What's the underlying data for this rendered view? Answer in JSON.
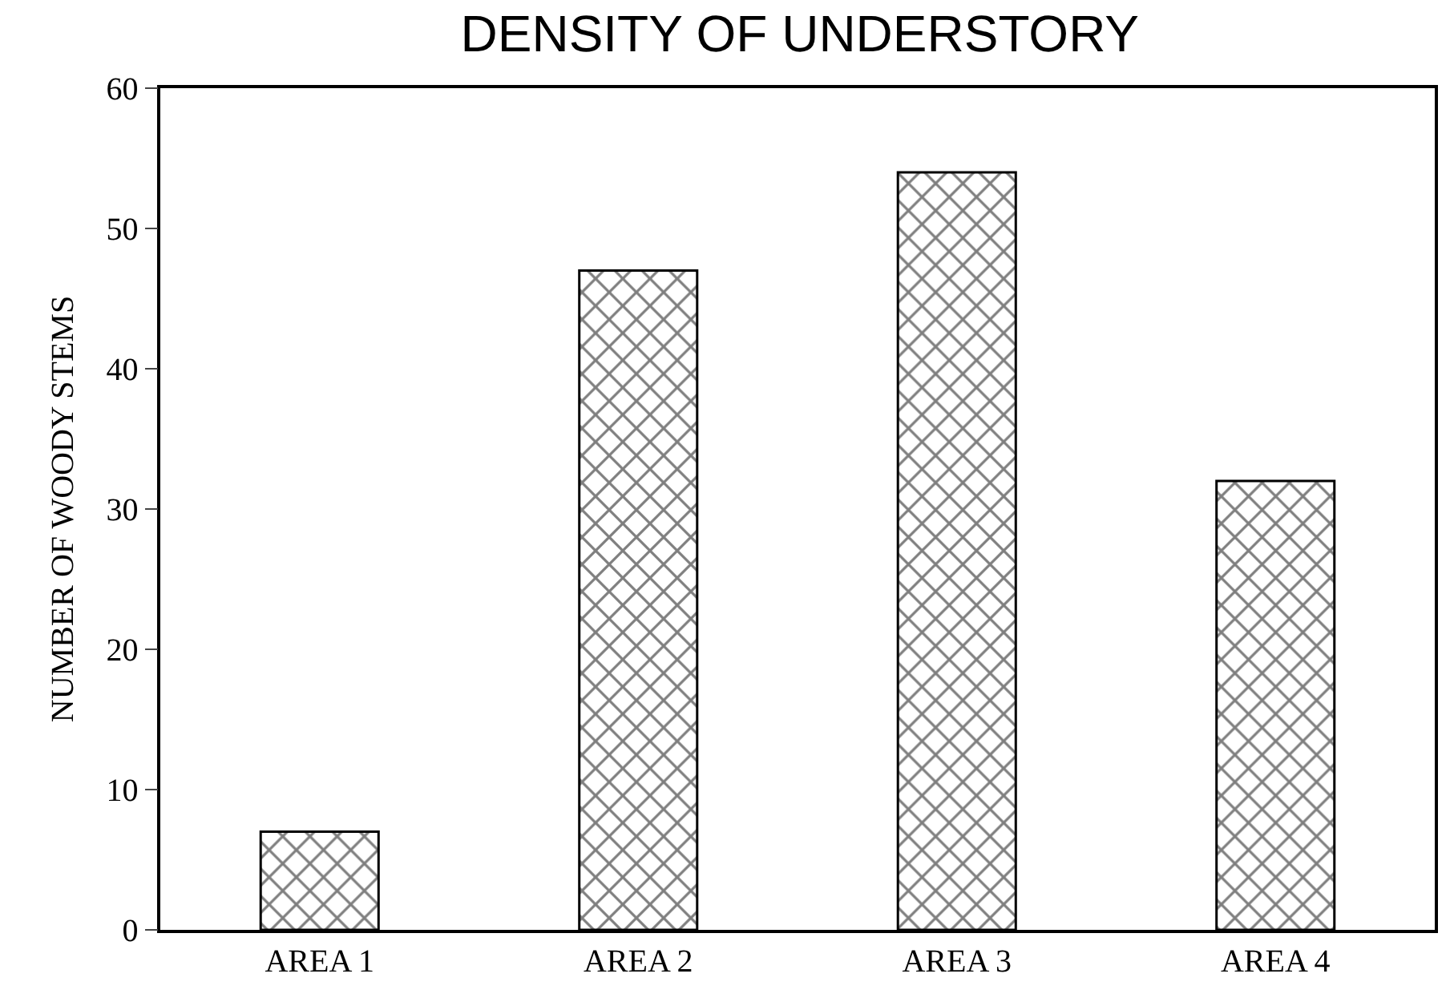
{
  "chart_data": {
    "type": "bar",
    "title": "DENSITY OF UNDERSTORY",
    "ylabel": "NUMBER OF WOODY STEMS",
    "categories": [
      "AREA 1",
      "AREA 2",
      "AREA 3",
      "AREA 4"
    ],
    "values": [
      7,
      47,
      54,
      32
    ],
    "color": "#000000",
    "ylim": [
      0,
      60
    ],
    "yticks": [
      0,
      10,
      20,
      30,
      40,
      50,
      60
    ]
  }
}
